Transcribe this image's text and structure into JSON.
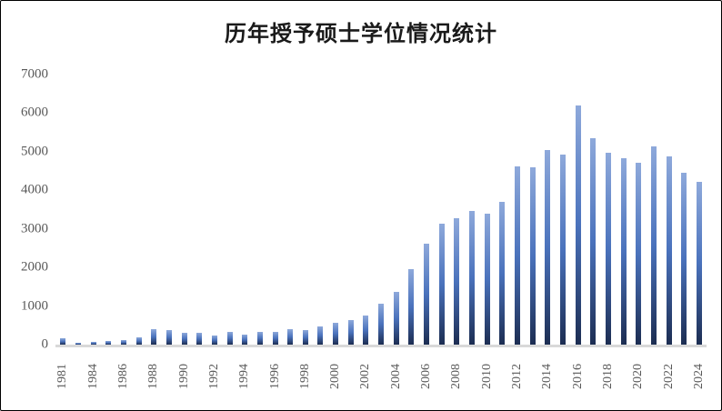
{
  "chart_data": {
    "type": "bar",
    "title": "历年授予硕士学位情况统计",
    "xlabel": "",
    "ylabel": "",
    "ylim": [
      0,
      7000
    ],
    "y_ticks": [
      0,
      1000,
      2000,
      3000,
      4000,
      5000,
      6000,
      7000
    ],
    "grid": "off",
    "legend": "none",
    "x_tick_label_rotation": -90,
    "x_tick_every_n_categories": 2,
    "categories": [
      1981,
      1982,
      1984,
      1985,
      1986,
      1987,
      1988,
      1989,
      1990,
      1991,
      1992,
      1993,
      1994,
      1995,
      1996,
      1997,
      1998,
      1999,
      2000,
      2001,
      2002,
      2003,
      2004,
      2005,
      2006,
      2007,
      2008,
      2009,
      2010,
      2011,
      2012,
      2013,
      2014,
      2015,
      2016,
      2017,
      2018,
      2019,
      2020,
      2021,
      2022,
      2023,
      2024
    ],
    "values": [
      170,
      50,
      80,
      85,
      110,
      180,
      410,
      385,
      305,
      305,
      245,
      330,
      260,
      330,
      320,
      405,
      370,
      465,
      565,
      635,
      760,
      1050,
      1370,
      1950,
      2605,
      3130,
      3265,
      3465,
      3390,
      3700,
      4620,
      4595,
      5050,
      4935,
      6210,
      5340,
      4970,
      4830,
      4720,
      5130,
      4880,
      4465,
      4230
    ],
    "colors": {
      "bar_gradient_top": "#8ea9db",
      "bar_gradient_mid": "#4a72bc",
      "bar_gradient_bottom": "#1c2d52",
      "axis_line": "#d9d9d9",
      "tick_label": "#595959",
      "title": "#1a1a1a",
      "background": "#ffffff"
    }
  }
}
